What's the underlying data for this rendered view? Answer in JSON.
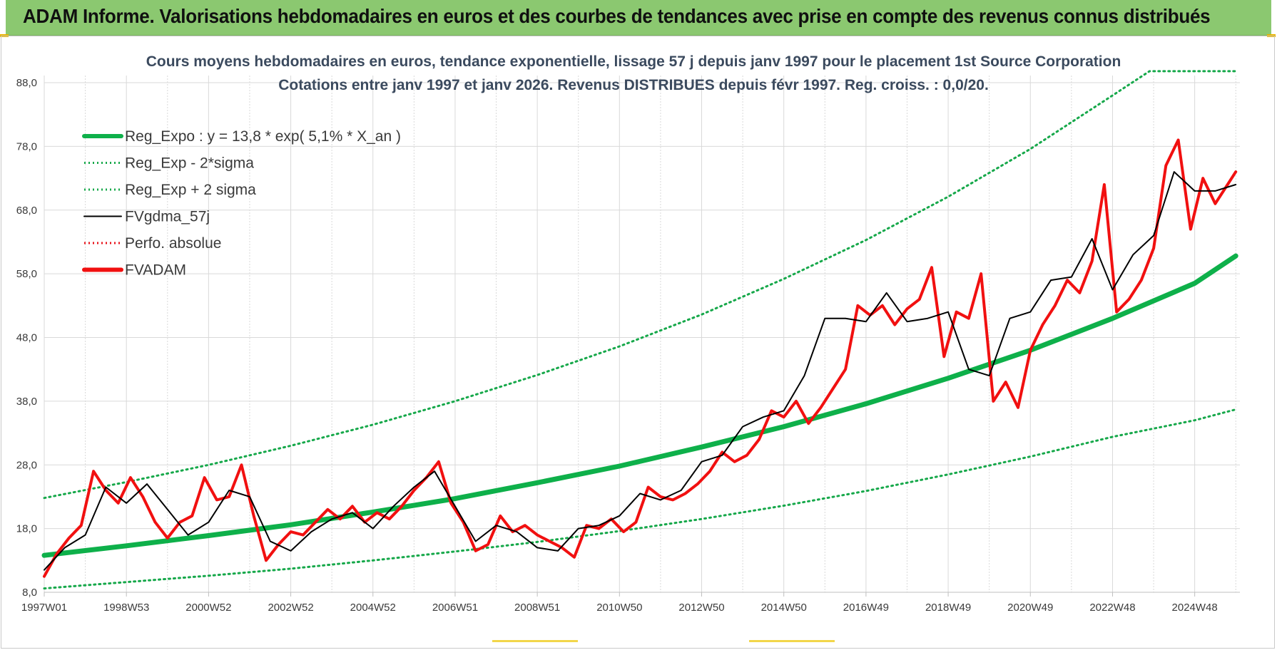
{
  "header": {
    "title": "ADAM Informe. Valorisations hebdomadaires en euros et des courbes de tendances avec prise en compte des revenus connus distribués"
  },
  "colors": {
    "header_bg": "#8bc870",
    "reg_expo": "#0eb04a",
    "sigma_lines": "#16a84a",
    "fvgdma": "#000000",
    "perfo": "#e8131b",
    "fvadam": "#f11010",
    "grid": "#d9d9d9"
  },
  "chart_data": {
    "type": "line",
    "title_line1": "Cours moyens hebdomadaires en euros, tendance exponentielle, lissage 57 j depuis janv 1997 pour le  placement 1st Source Corporation",
    "title_line2": "Cotations entre janv 1997 et janv 2026. Revenus DISTRIBUES depuis févr 1997. Reg. croiss. : 0,0/20.",
    "xlim": [
      1997.0,
      2026.1
    ],
    "ylim": [
      8,
      88
    ],
    "yticks": [
      8,
      18,
      28,
      38,
      48,
      58,
      68,
      78,
      88
    ],
    "ytick_labels": [
      "8,0",
      "18,0",
      "28,0",
      "38,0",
      "48,0",
      "58,0",
      "68,0",
      "78,0",
      "88,0"
    ],
    "xticks": [
      1997.0,
      1999.0,
      2001.0,
      2003.0,
      2005.0,
      2007.0,
      2009.0,
      2011.0,
      2013.0,
      2015.0,
      2017.0,
      2019.0,
      2021.0,
      2023.0,
      2025.0
    ],
    "xtick_labels": [
      "1997W01",
      "1998W53",
      "2000W52",
      "2002W52",
      "2004W52",
      "2006W51",
      "2008W51",
      "2010W50",
      "2012W50",
      "2014W50",
      "2016W49",
      "2018W49",
      "2020W49",
      "2022W48",
      "2024W48"
    ],
    "grid": true,
    "legend_position": "top-left",
    "legend": [
      {
        "label": "Reg_Expo : y = 13,8 * exp( 5,1% *  X_an )",
        "style": "solid-thick",
        "color": "#0eb04a"
      },
      {
        "label": "Reg_Exp - 2*sigma",
        "style": "dotted",
        "color": "#16a84a"
      },
      {
        "label": "Reg_Exp + 2 sigma",
        "style": "dotted",
        "color": "#16a84a"
      },
      {
        "label": "FVgdma_57j",
        "style": "solid",
        "color": "#000000"
      },
      {
        "label": "Perfo. absolue",
        "style": "dotted",
        "color": "#e8131b"
      },
      {
        "label": "FVADAM",
        "style": "solid-thick",
        "color": "#f11010"
      }
    ],
    "series": [
      {
        "name": "Reg_Expo : y = 13,8 * exp( 5,1% *  X_an )",
        "x": [
          1997.0,
          1999.0,
          2001.0,
          2003.0,
          2005.0,
          2007.0,
          2009.0,
          2011.0,
          2013.0,
          2015.0,
          2017.0,
          2019.0,
          2021.0,
          2023.0,
          2025.0,
          2026.0
        ],
        "values": [
          13.8,
          15.3,
          16.9,
          18.6,
          20.6,
          22.7,
          25.2,
          27.8,
          30.8,
          34.0,
          37.6,
          41.6,
          46.0,
          51.0,
          56.5,
          60.8
        ]
      },
      {
        "name": "Reg_Exp - 2*sigma",
        "x": [
          1997.0,
          1999.0,
          2001.0,
          2003.0,
          2005.0,
          2007.0,
          2009.0,
          2011.0,
          2013.0,
          2015.0,
          2017.0,
          2019.0,
          2021.0,
          2023.0,
          2025.0,
          2026.0
        ],
        "values": [
          8.6,
          9.6,
          10.6,
          11.7,
          13.0,
          14.4,
          15.9,
          17.6,
          19.5,
          21.6,
          23.9,
          26.5,
          29.3,
          32.4,
          35.0,
          36.7
        ]
      },
      {
        "name": "Reg_Exp + 2 sigma",
        "x": [
          1997.0,
          1999.0,
          2001.0,
          2003.0,
          2005.0,
          2007.0,
          2009.0,
          2011.0,
          2013.0,
          2015.0,
          2017.0,
          2019.0,
          2021.0,
          2023.0,
          2023.9,
          2026.0
        ],
        "values": [
          22.8,
          25.3,
          28.0,
          31.0,
          34.3,
          38.0,
          42.1,
          46.6,
          51.6,
          57.2,
          63.3,
          70.1,
          77.6,
          86.0,
          89.8,
          89.8
        ]
      },
      {
        "name": "FVgdma_57j",
        "x": [
          1997.0,
          1997.5,
          1998.0,
          1998.5,
          1999.0,
          1999.5,
          2000.0,
          2000.5,
          2001.0,
          2001.5,
          2002.0,
          2002.5,
          2003.0,
          2003.5,
          2004.0,
          2004.5,
          2005.0,
          2005.5,
          2006.0,
          2006.5,
          2007.0,
          2007.5,
          2008.0,
          2008.5,
          2009.0,
          2009.5,
          2010.0,
          2010.5,
          2011.0,
          2011.5,
          2012.0,
          2012.5,
          2013.0,
          2013.5,
          2014.0,
          2014.5,
          2015.0,
          2015.5,
          2016.0,
          2016.5,
          2017.0,
          2017.5,
          2018.0,
          2018.5,
          2019.0,
          2019.5,
          2020.0,
          2020.5,
          2021.0,
          2021.5,
          2022.0,
          2022.5,
          2023.0,
          2023.5,
          2024.0,
          2024.5,
          2025.0,
          2025.5,
          2026.0
        ],
        "values": [
          11.5,
          15.0,
          17.0,
          24.5,
          22.0,
          25.0,
          21.0,
          17.0,
          19.0,
          24.0,
          23.0,
          16.0,
          14.5,
          17.5,
          19.5,
          20.5,
          18.0,
          21.5,
          24.5,
          27.0,
          21.5,
          16.0,
          18.5,
          17.5,
          15.0,
          14.5,
          18.0,
          18.5,
          20.0,
          23.5,
          22.5,
          24.0,
          28.5,
          29.5,
          34.0,
          35.5,
          36.5,
          42.0,
          51.0,
          51.0,
          50.5,
          55.0,
          50.5,
          51.0,
          52.0,
          43.0,
          42.0,
          51.0,
          52.0,
          57.0,
          57.5,
          63.5,
          55.5,
          61.0,
          64.0,
          74.0,
          71.0,
          71.0,
          72.0
        ]
      },
      {
        "name": "FVADAM",
        "x": [
          1997.0,
          1997.3,
          1997.6,
          1997.9,
          1998.2,
          1998.5,
          1998.8,
          1999.1,
          1999.4,
          1999.7,
          2000.0,
          2000.3,
          2000.6,
          2000.9,
          2001.2,
          2001.5,
          2001.8,
          2002.1,
          2002.4,
          2002.7,
          2003.0,
          2003.3,
          2003.6,
          2003.9,
          2004.2,
          2004.5,
          2004.8,
          2005.1,
          2005.4,
          2005.7,
          2006.0,
          2006.3,
          2006.6,
          2006.9,
          2007.2,
          2007.5,
          2007.8,
          2008.1,
          2008.4,
          2008.7,
          2009.0,
          2009.3,
          2009.6,
          2009.9,
          2010.2,
          2010.5,
          2010.8,
          2011.1,
          2011.4,
          2011.7,
          2012.0,
          2012.3,
          2012.6,
          2012.9,
          2013.2,
          2013.5,
          2013.8,
          2014.1,
          2014.4,
          2014.7,
          2015.0,
          2015.3,
          2015.6,
          2015.9,
          2016.2,
          2016.5,
          2016.8,
          2017.1,
          2017.4,
          2017.7,
          2018.0,
          2018.3,
          2018.6,
          2018.9,
          2019.2,
          2019.5,
          2019.8,
          2020.1,
          2020.4,
          2020.7,
          2021.0,
          2021.3,
          2021.6,
          2021.9,
          2022.2,
          2022.5,
          2022.8,
          2023.1,
          2023.4,
          2023.7,
          2024.0,
          2024.3,
          2024.6,
          2024.9,
          2025.2,
          2025.5,
          2025.8,
          2026.0
        ],
        "values": [
          10.5,
          14.0,
          16.5,
          18.5,
          27.0,
          24.0,
          22.0,
          26.0,
          23.0,
          19.0,
          16.5,
          19.0,
          20.0,
          26.0,
          22.5,
          23.0,
          28.0,
          20.0,
          13.0,
          15.5,
          17.5,
          17.0,
          19.0,
          21.0,
          19.5,
          21.5,
          19.0,
          20.5,
          19.5,
          21.5,
          24.0,
          26.0,
          28.5,
          22.0,
          19.0,
          14.5,
          15.5,
          20.0,
          17.5,
          18.5,
          17.0,
          16.0,
          15.0,
          13.5,
          18.5,
          18.0,
          19.5,
          17.5,
          19.0,
          24.5,
          23.0,
          22.5,
          23.5,
          25.0,
          27.0,
          30.0,
          28.5,
          29.5,
          32.0,
          36.5,
          35.5,
          38.0,
          34.5,
          37.0,
          40.0,
          43.0,
          53.0,
          51.5,
          53.0,
          50.0,
          52.5,
          54.0,
          59.0,
          45.0,
          52.0,
          51.0,
          58.0,
          38.0,
          41.0,
          37.0,
          46.0,
          50.0,
          53.0,
          57.0,
          55.0,
          60.0,
          72.0,
          52.0,
          54.0,
          57.0,
          62.0,
          75.0,
          79.0,
          65.0,
          73.0,
          69.0,
          72.0,
          74.0
        ]
      }
    ]
  }
}
